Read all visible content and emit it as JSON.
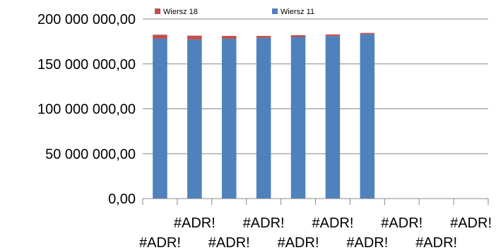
{
  "chart_data": {
    "type": "bar",
    "stacked": true,
    "categories": [
      "#ADR!",
      "#ADR!",
      "#ADR!",
      "#ADR!",
      "#ADR!",
      "#ADR!",
      "#ADR!",
      "#ADR!",
      "#ADR!",
      "#ADR!"
    ],
    "series": [
      {
        "name": "Wiersz 11",
        "color": "#4F81BD",
        "values": [
          178000000,
          177000000,
          178000000,
          179000000,
          180000000,
          181000000,
          183000000,
          null,
          null,
          null
        ]
      },
      {
        "name": "Wiersz 18",
        "color": "#C0504D",
        "values": [
          4500000,
          4500000,
          3200000,
          2200000,
          2000000,
          1800000,
          1500000,
          null,
          null,
          null
        ]
      }
    ],
    "y_ticks": [
      {
        "value": 0,
        "label": "0,00"
      },
      {
        "value": 50000000,
        "label": "50 000 000,00"
      },
      {
        "value": 100000000,
        "label": "100 000 000,00"
      },
      {
        "value": 150000000,
        "label": "150 000 000,00"
      },
      {
        "value": 200000000,
        "label": "200 000 000,00"
      }
    ],
    "ylim": [
      0,
      200000000
    ],
    "grid": true,
    "legend_position": "top",
    "legend_order": [
      "Wiersz 18",
      "Wiersz 11"
    ],
    "gridline_color": "#878787",
    "axis_color": "#878787"
  }
}
